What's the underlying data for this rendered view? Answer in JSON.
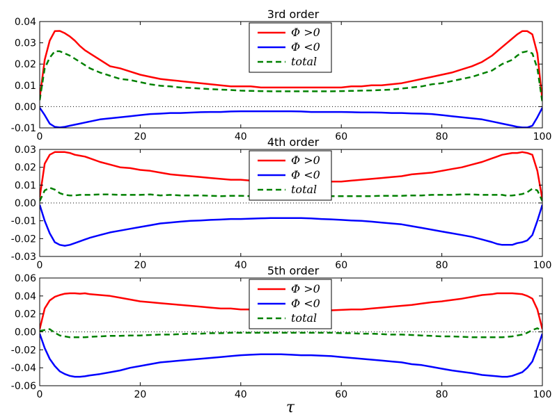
{
  "chart_data": [
    {
      "type": "line",
      "title": "3rd order",
      "xlabel": "",
      "ylabel": "",
      "xlim": [
        0,
        100
      ],
      "ylim": [
        -0.01,
        0.04
      ],
      "xticks": [
        0,
        20,
        40,
        60,
        80,
        100
      ],
      "xtick_labels": [
        "0",
        "20",
        "40",
        "60",
        "80",
        "100"
      ],
      "yticks": [
        -0.01,
        0.0,
        0.01,
        0.02,
        0.03,
        0.04
      ],
      "ytick_labels": [
        "-0.01",
        "0.00",
        "0.01",
        "0.02",
        "0.03",
        "0.04"
      ],
      "zero_line": true,
      "legend_position": "top-center",
      "x": [
        0,
        1,
        2,
        3,
        4,
        5,
        6,
        7,
        8,
        9,
        10,
        12,
        14,
        16,
        18,
        20,
        22,
        24,
        26,
        28,
        30,
        32,
        34,
        36,
        38,
        40,
        42,
        44,
        46,
        48,
        50,
        52,
        54,
        56,
        58,
        60,
        62,
        64,
        66,
        68,
        70,
        72,
        74,
        76,
        78,
        80,
        82,
        84,
        86,
        88,
        90,
        91,
        92,
        93,
        94,
        95,
        96,
        97,
        98,
        99,
        100
      ],
      "series": [
        {
          "name": "Φ >0",
          "color": "#ff0000",
          "style": "solid",
          "values": [
            0.004,
            0.022,
            0.031,
            0.0355,
            0.0356,
            0.0345,
            0.033,
            0.031,
            0.0285,
            0.0265,
            0.025,
            0.022,
            0.019,
            0.018,
            0.0165,
            0.015,
            0.014,
            0.013,
            0.0125,
            0.012,
            0.0115,
            0.011,
            0.0105,
            0.01,
            0.0095,
            0.0095,
            0.0095,
            0.009,
            0.009,
            0.009,
            0.009,
            0.009,
            0.009,
            0.009,
            0.009,
            0.009,
            0.0095,
            0.0095,
            0.01,
            0.01,
            0.0105,
            0.011,
            0.012,
            0.013,
            0.014,
            0.015,
            0.016,
            0.0175,
            0.019,
            0.021,
            0.024,
            0.026,
            0.028,
            0.03,
            0.032,
            0.034,
            0.0355,
            0.0355,
            0.034,
            0.025,
            0.003
          ]
        },
        {
          "name": "Φ <0",
          "color": "#0000ff",
          "style": "solid",
          "values": [
            -0.0005,
            -0.004,
            -0.008,
            -0.0095,
            -0.0098,
            -0.0095,
            -0.009,
            -0.0085,
            -0.008,
            -0.0075,
            -0.007,
            -0.006,
            -0.0055,
            -0.005,
            -0.0045,
            -0.004,
            -0.0035,
            -0.0033,
            -0.003,
            -0.003,
            -0.0028,
            -0.0026,
            -0.0025,
            -0.0025,
            -0.0023,
            -0.0022,
            -0.0022,
            -0.0022,
            -0.0022,
            -0.0022,
            -0.0022,
            -0.0023,
            -0.0025,
            -0.0025,
            -0.0025,
            -0.0025,
            -0.0026,
            -0.0027,
            -0.0027,
            -0.0028,
            -0.003,
            -0.003,
            -0.0032,
            -0.0033,
            -0.0035,
            -0.004,
            -0.0045,
            -0.005,
            -0.0055,
            -0.006,
            -0.007,
            -0.0075,
            -0.008,
            -0.0085,
            -0.009,
            -0.0095,
            -0.0098,
            -0.0098,
            -0.009,
            -0.005,
            -0.0005
          ]
        },
        {
          "name": "total",
          "color": "#008000",
          "style": "dashed",
          "values": [
            0.003,
            0.018,
            0.023,
            0.026,
            0.026,
            0.025,
            0.024,
            0.0225,
            0.021,
            0.0195,
            0.018,
            0.016,
            0.0145,
            0.013,
            0.0125,
            0.0115,
            0.0105,
            0.0098,
            0.0095,
            0.009,
            0.0088,
            0.0085,
            0.0082,
            0.008,
            0.0078,
            0.0075,
            0.0074,
            0.0073,
            0.0072,
            0.0072,
            0.0072,
            0.0072,
            0.0072,
            0.0072,
            0.0072,
            0.0073,
            0.0074,
            0.0075,
            0.0076,
            0.0078,
            0.008,
            0.0085,
            0.009,
            0.0095,
            0.0105,
            0.011,
            0.012,
            0.013,
            0.014,
            0.0155,
            0.017,
            0.0185,
            0.02,
            0.021,
            0.022,
            0.024,
            0.0255,
            0.026,
            0.025,
            0.018,
            0.002
          ]
        }
      ]
    },
    {
      "type": "line",
      "title": "4th order",
      "xlabel": "",
      "ylabel": "",
      "xlim": [
        0,
        100
      ],
      "ylim": [
        -0.03,
        0.03
      ],
      "xticks": [
        0,
        20,
        40,
        60,
        80,
        100
      ],
      "xtick_labels": [
        "0",
        "20",
        "40",
        "60",
        "80",
        "100"
      ],
      "yticks": [
        -0.03,
        -0.02,
        -0.01,
        0.0,
        0.01,
        0.02,
        0.03
      ],
      "ytick_labels": [
        "-0.03",
        "-0.02",
        "-0.01",
        "0.00",
        "0.01",
        "0.02",
        "0.03"
      ],
      "zero_line": true,
      "legend_position": "top-center",
      "x": [
        0,
        1,
        2,
        3,
        4,
        5,
        6,
        7,
        8,
        9,
        10,
        12,
        14,
        16,
        18,
        20,
        22,
        24,
        26,
        28,
        30,
        32,
        34,
        36,
        38,
        40,
        42,
        44,
        46,
        48,
        50,
        52,
        54,
        56,
        58,
        60,
        62,
        64,
        66,
        68,
        70,
        72,
        74,
        76,
        78,
        80,
        82,
        84,
        86,
        88,
        90,
        91,
        92,
        93,
        94,
        95,
        96,
        97,
        98,
        99,
        100
      ],
      "series": [
        {
          "name": "Φ >0",
          "color": "#ff0000",
          "style": "solid",
          "values": [
            0.003,
            0.022,
            0.027,
            0.0285,
            0.0285,
            0.0285,
            0.028,
            0.027,
            0.0265,
            0.026,
            0.025,
            0.023,
            0.0215,
            0.02,
            0.0195,
            0.0185,
            0.018,
            0.017,
            0.016,
            0.0155,
            0.015,
            0.0145,
            0.014,
            0.0135,
            0.013,
            0.013,
            0.0125,
            0.0125,
            0.012,
            0.012,
            0.012,
            0.012,
            0.012,
            0.012,
            0.012,
            0.012,
            0.0125,
            0.013,
            0.0135,
            0.014,
            0.0145,
            0.015,
            0.016,
            0.0165,
            0.017,
            0.018,
            0.019,
            0.02,
            0.0215,
            0.023,
            0.025,
            0.026,
            0.027,
            0.0275,
            0.028,
            0.028,
            0.0285,
            0.028,
            0.027,
            0.018,
            0.002
          ]
        },
        {
          "name": "Φ <0",
          "color": "#0000ff",
          "style": "solid",
          "values": [
            -0.001,
            -0.01,
            -0.017,
            -0.022,
            -0.0235,
            -0.024,
            -0.0235,
            -0.0225,
            -0.0215,
            -0.0205,
            -0.0195,
            -0.018,
            -0.0165,
            -0.0155,
            -0.0145,
            -0.0135,
            -0.0125,
            -0.0115,
            -0.011,
            -0.0105,
            -0.01,
            -0.0098,
            -0.0095,
            -0.0093,
            -0.009,
            -0.009,
            -0.0088,
            -0.0086,
            -0.0085,
            -0.0085,
            -0.0085,
            -0.0085,
            -0.0087,
            -0.009,
            -0.0092,
            -0.0095,
            -0.0098,
            -0.01,
            -0.0105,
            -0.011,
            -0.0115,
            -0.012,
            -0.013,
            -0.014,
            -0.015,
            -0.016,
            -0.017,
            -0.018,
            -0.019,
            -0.0205,
            -0.022,
            -0.023,
            -0.0235,
            -0.0235,
            -0.0235,
            -0.0225,
            -0.022,
            -0.021,
            -0.018,
            -0.01,
            -0.001
          ]
        },
        {
          "name": "total",
          "color": "#008000",
          "style": "dashed",
          "values": [
            0.001,
            0.007,
            0.0085,
            0.0075,
            0.0055,
            0.0045,
            0.0042,
            0.0042,
            0.0045,
            0.0045,
            0.0045,
            0.0048,
            0.0048,
            0.0045,
            0.0045,
            0.0045,
            0.0048,
            0.0042,
            0.0045,
            0.0042,
            0.0042,
            0.0042,
            0.004,
            0.0038,
            0.004,
            0.004,
            0.0038,
            0.0038,
            0.0038,
            0.0038,
            0.0038,
            0.0038,
            0.0038,
            0.0038,
            0.0038,
            0.0038,
            0.0038,
            0.0038,
            0.0038,
            0.004,
            0.004,
            0.004,
            0.0042,
            0.0042,
            0.0045,
            0.0045,
            0.0045,
            0.0048,
            0.0048,
            0.0045,
            0.0045,
            0.0045,
            0.0045,
            0.004,
            0.0042,
            0.0045,
            0.005,
            0.006,
            0.008,
            0.007,
            0.001
          ]
        }
      ]
    },
    {
      "type": "line",
      "title": "5th order",
      "xlabel": "τ",
      "ylabel": "",
      "xlim": [
        0,
        100
      ],
      "ylim": [
        -0.06,
        0.06
      ],
      "xticks": [
        0,
        20,
        40,
        60,
        80,
        100
      ],
      "xtick_labels": [
        "0",
        "20",
        "40",
        "60",
        "80",
        "100"
      ],
      "yticks": [
        -0.06,
        -0.04,
        -0.02,
        0.0,
        0.02,
        0.04,
        0.06
      ],
      "ytick_labels": [
        "-0.06",
        "-0.04",
        "-0.02",
        "0.00",
        "0.02",
        "0.04",
        "0.06"
      ],
      "zero_line": true,
      "legend_position": "top-center",
      "x": [
        0,
        1,
        2,
        3,
        4,
        5,
        6,
        7,
        8,
        9,
        10,
        12,
        14,
        16,
        18,
        20,
        22,
        24,
        26,
        28,
        30,
        32,
        34,
        36,
        38,
        40,
        42,
        44,
        46,
        48,
        50,
        52,
        54,
        56,
        58,
        60,
        62,
        64,
        66,
        68,
        70,
        72,
        74,
        76,
        78,
        80,
        82,
        84,
        86,
        88,
        90,
        91,
        92,
        93,
        94,
        95,
        96,
        97,
        98,
        99,
        100
      ],
      "series": [
        {
          "name": "Φ >0",
          "color": "#ff0000",
          "style": "solid",
          "values": [
            0.003,
            0.026,
            0.035,
            0.039,
            0.041,
            0.0425,
            0.043,
            0.043,
            0.0425,
            0.043,
            0.042,
            0.041,
            0.04,
            0.038,
            0.036,
            0.034,
            0.033,
            0.032,
            0.031,
            0.03,
            0.029,
            0.028,
            0.027,
            0.026,
            0.026,
            0.025,
            0.025,
            0.0245,
            0.0245,
            0.024,
            0.024,
            0.024,
            0.024,
            0.024,
            0.024,
            0.0245,
            0.025,
            0.025,
            0.026,
            0.027,
            0.028,
            0.029,
            0.03,
            0.0315,
            0.033,
            0.034,
            0.0355,
            0.037,
            0.039,
            0.041,
            0.042,
            0.043,
            0.043,
            0.043,
            0.043,
            0.0425,
            0.042,
            0.04,
            0.037,
            0.025,
            0.003
          ]
        },
        {
          "name": "Φ <0",
          "color": "#0000ff",
          "style": "solid",
          "values": [
            -0.002,
            -0.018,
            -0.03,
            -0.038,
            -0.044,
            -0.047,
            -0.049,
            -0.05,
            -0.05,
            -0.0495,
            -0.0485,
            -0.047,
            -0.045,
            -0.043,
            -0.04,
            -0.038,
            -0.036,
            -0.034,
            -0.033,
            -0.032,
            -0.031,
            -0.03,
            -0.029,
            -0.028,
            -0.027,
            -0.026,
            -0.0255,
            -0.025,
            -0.025,
            -0.025,
            -0.0255,
            -0.026,
            -0.026,
            -0.0265,
            -0.027,
            -0.028,
            -0.029,
            -0.03,
            -0.031,
            -0.032,
            -0.033,
            -0.034,
            -0.036,
            -0.037,
            -0.039,
            -0.041,
            -0.043,
            -0.0445,
            -0.046,
            -0.048,
            -0.049,
            -0.0495,
            -0.05,
            -0.05,
            -0.049,
            -0.047,
            -0.045,
            -0.04,
            -0.033,
            -0.018,
            -0.002
          ]
        },
        {
          "name": "total",
          "color": "#008000",
          "style": "dashed",
          "values": [
            0.001,
            0.002,
            0.003,
            -0.001,
            -0.004,
            -0.005,
            -0.006,
            -0.006,
            -0.006,
            -0.006,
            -0.0055,
            -0.005,
            -0.0045,
            -0.0045,
            -0.004,
            -0.004,
            -0.0035,
            -0.003,
            -0.003,
            -0.0025,
            -0.002,
            -0.002,
            -0.0015,
            -0.0015,
            -0.001,
            -0.001,
            -0.001,
            -0.001,
            -0.001,
            -0.001,
            -0.001,
            -0.001,
            -0.001,
            -0.001,
            -0.001,
            -0.0015,
            -0.0015,
            -0.002,
            -0.002,
            -0.0025,
            -0.003,
            -0.003,
            -0.0035,
            -0.004,
            -0.0045,
            -0.005,
            -0.005,
            -0.0055,
            -0.006,
            -0.006,
            -0.006,
            -0.006,
            -0.006,
            -0.0055,
            -0.005,
            -0.004,
            -0.003,
            -0.001,
            0.002,
            0.004,
            0.001
          ]
        }
      ]
    }
  ]
}
